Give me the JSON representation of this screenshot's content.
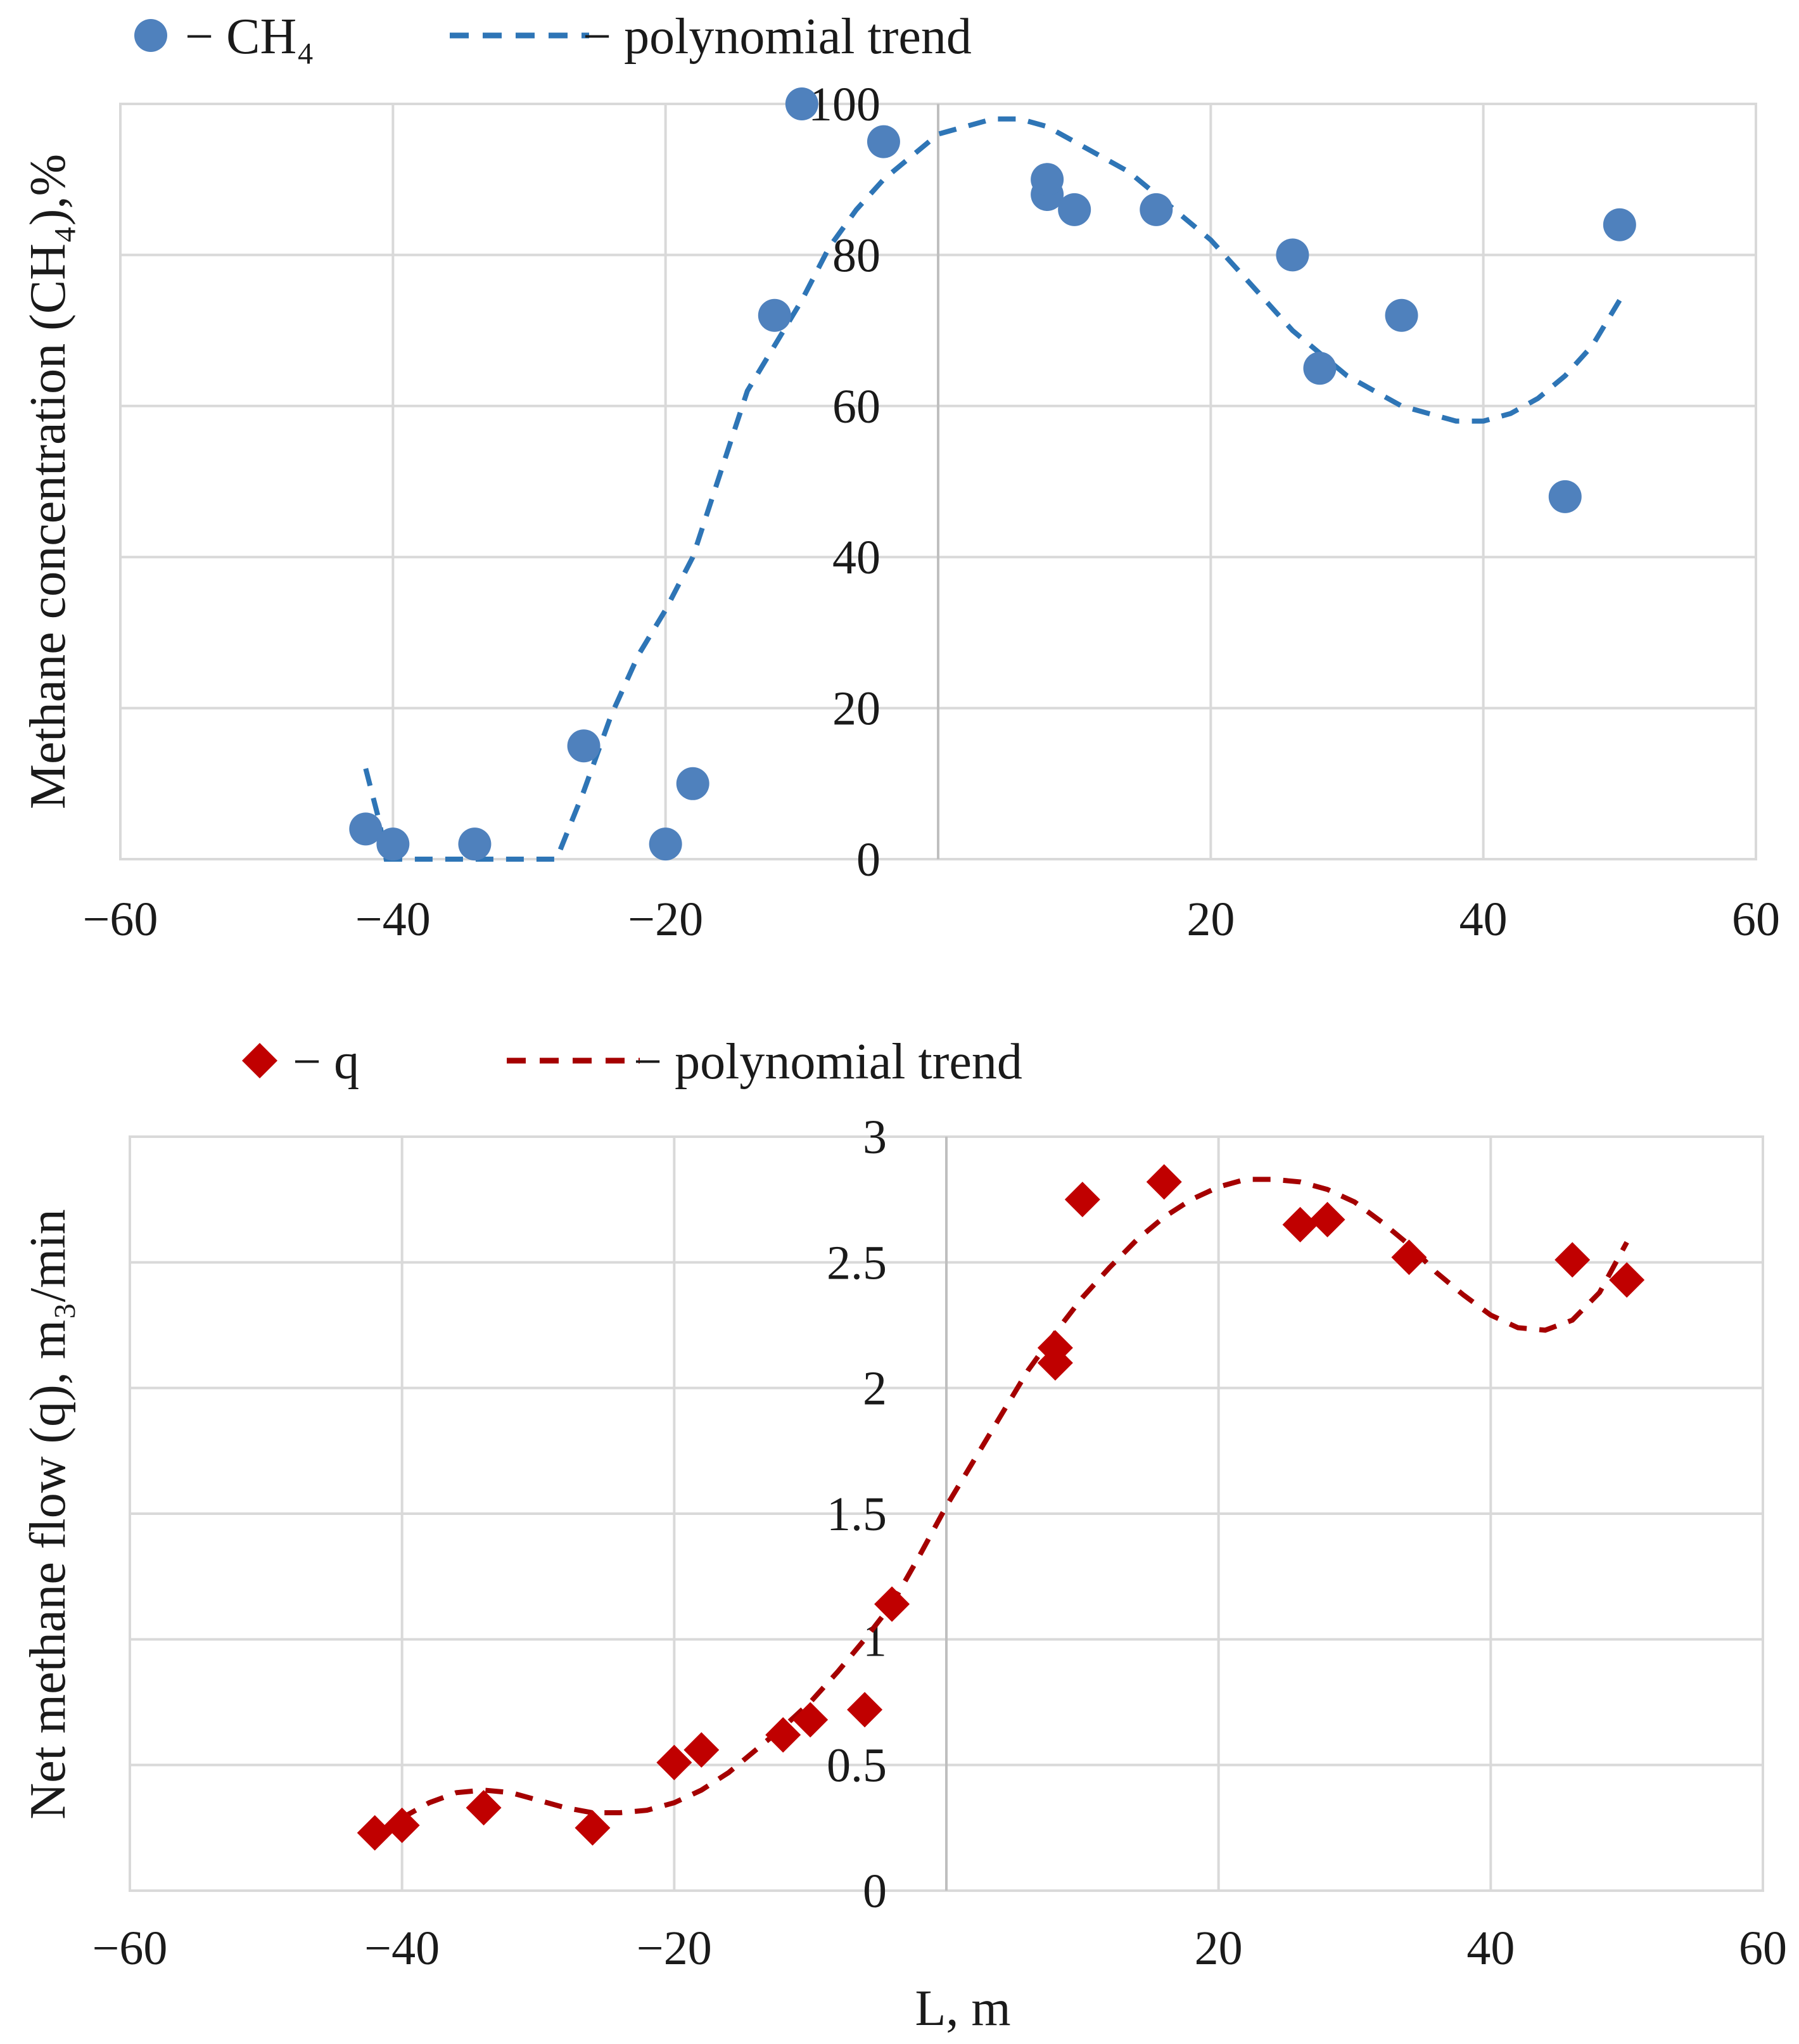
{
  "figure": {
    "xlabel_common": "L, m"
  },
  "chart_data": [
    {
      "type": "scatter",
      "title": "",
      "xlabel": "",
      "ylabel": "Methane concentration (CH₄),%",
      "xlim": [
        -60,
        60
      ],
      "ylim": [
        0,
        100
      ],
      "xticks": [
        -60,
        -40,
        -20,
        20,
        40,
        60
      ],
      "yticks": [
        0,
        20,
        40,
        60,
        80,
        100
      ],
      "xtick_labels": [
        "−60",
        "−40",
        "−20",
        "20",
        "40",
        "60"
      ],
      "ytick_labels": [
        "0",
        "20",
        "40",
        "60",
        "80",
        "100"
      ],
      "grid": true,
      "legend_position": "top-left, above plot",
      "legend": [
        {
          "marker": "circle",
          "label": "− CH₄"
        },
        {
          "marker": "dashed-line",
          "label": "− polynomial trend"
        }
      ],
      "colors": {
        "points": "#4f81bd",
        "trend": "#2e75b6"
      },
      "series": [
        {
          "name": "CH4",
          "kind": "points",
          "x": [
            -42,
            -40,
            -34,
            -26,
            -20,
            -18,
            -12,
            -10,
            -4,
            8,
            8,
            10,
            16,
            26,
            28,
            34,
            46,
            50
          ],
          "y": [
            4,
            2,
            2,
            15,
            2,
            10,
            72,
            100,
            95,
            88,
            90,
            86,
            86,
            80,
            65,
            72,
            48,
            84
          ]
        },
        {
          "name": "polynomial trend",
          "kind": "dashed-line",
          "x": [
            -42,
            -41,
            -40.5,
            -28,
            -26,
            -24,
            -22,
            -20,
            -18,
            -16,
            -14,
            -12,
            -10,
            -8,
            -6,
            -4,
            -2,
            0,
            2,
            4,
            6,
            8,
            10,
            12,
            14,
            16,
            18,
            20,
            22,
            24,
            26,
            28,
            30,
            32,
            34,
            36,
            38,
            40,
            42,
            44,
            46,
            48,
            50
          ],
          "y": [
            12,
            5,
            0,
            0,
            9,
            19,
            27,
            33,
            40,
            51,
            62,
            68,
            74,
            81,
            86,
            90,
            93,
            96,
            97,
            98,
            98,
            97,
            95,
            93,
            91,
            88,
            85,
            82,
            78,
            74,
            70,
            67,
            64,
            62,
            60,
            59,
            58,
            58,
            59,
            61,
            64,
            68,
            74
          ]
        }
      ]
    },
    {
      "type": "scatter",
      "title": "",
      "xlabel": "L, m",
      "ylabel": "Net methane flow (q), m₃/min",
      "xlim": [
        -60,
        60
      ],
      "ylim": [
        0,
        3
      ],
      "xticks": [
        -60,
        -40,
        -20,
        20,
        40,
        60
      ],
      "yticks": [
        0,
        0.5,
        1,
        1.5,
        2,
        2.5,
        3
      ],
      "xtick_labels": [
        "−60",
        "−40",
        "−20",
        "20",
        "40",
        "60"
      ],
      "ytick_labels": [
        "0",
        "0.5",
        "1",
        "1.5",
        "2",
        "2.5",
        "3"
      ],
      "grid": true,
      "legend_position": "top-left, above plot",
      "legend": [
        {
          "marker": "diamond",
          "label": "− q"
        },
        {
          "marker": "dashed-line",
          "label": "− polynomial trend"
        }
      ],
      "colors": {
        "points": "#c00000",
        "trend": "#a50000"
      },
      "series": [
        {
          "name": "q",
          "kind": "points",
          "x": [
            -42,
            -40,
            -34,
            -26,
            -20,
            -18,
            -12,
            -10,
            -6,
            -4,
            8,
            8,
            10,
            16,
            26,
            28,
            34,
            46,
            50
          ],
          "y": [
            0.23,
            0.26,
            0.33,
            0.25,
            0.51,
            0.56,
            0.62,
            0.68,
            0.72,
            1.14,
            2.1,
            2.16,
            2.75,
            2.82,
            2.65,
            2.67,
            2.52,
            2.51,
            2.43
          ]
        },
        {
          "name": "polynomial trend",
          "kind": "dashed-line",
          "x": [
            -42,
            -40,
            -38,
            -36,
            -34,
            -32,
            -30,
            -28,
            -26,
            -24,
            -22,
            -20,
            -18,
            -16,
            -14,
            -12,
            -10,
            -8,
            -6,
            -4,
            -2,
            0,
            2,
            4,
            6,
            8,
            10,
            12,
            14,
            16,
            18,
            20,
            22,
            24,
            26,
            28,
            30,
            32,
            34,
            36,
            38,
            40,
            42,
            44,
            46,
            48,
            50
          ],
          "y": [
            0.22,
            0.29,
            0.35,
            0.39,
            0.4,
            0.39,
            0.36,
            0.33,
            0.31,
            0.31,
            0.32,
            0.35,
            0.4,
            0.47,
            0.56,
            0.65,
            0.75,
            0.87,
            1.0,
            1.14,
            1.33,
            1.53,
            1.71,
            1.89,
            2.07,
            2.22,
            2.36,
            2.48,
            2.59,
            2.68,
            2.75,
            2.8,
            2.83,
            2.83,
            2.82,
            2.79,
            2.74,
            2.66,
            2.57,
            2.46,
            2.37,
            2.29,
            2.24,
            2.23,
            2.27,
            2.38,
            2.58
          ]
        }
      ]
    }
  ]
}
